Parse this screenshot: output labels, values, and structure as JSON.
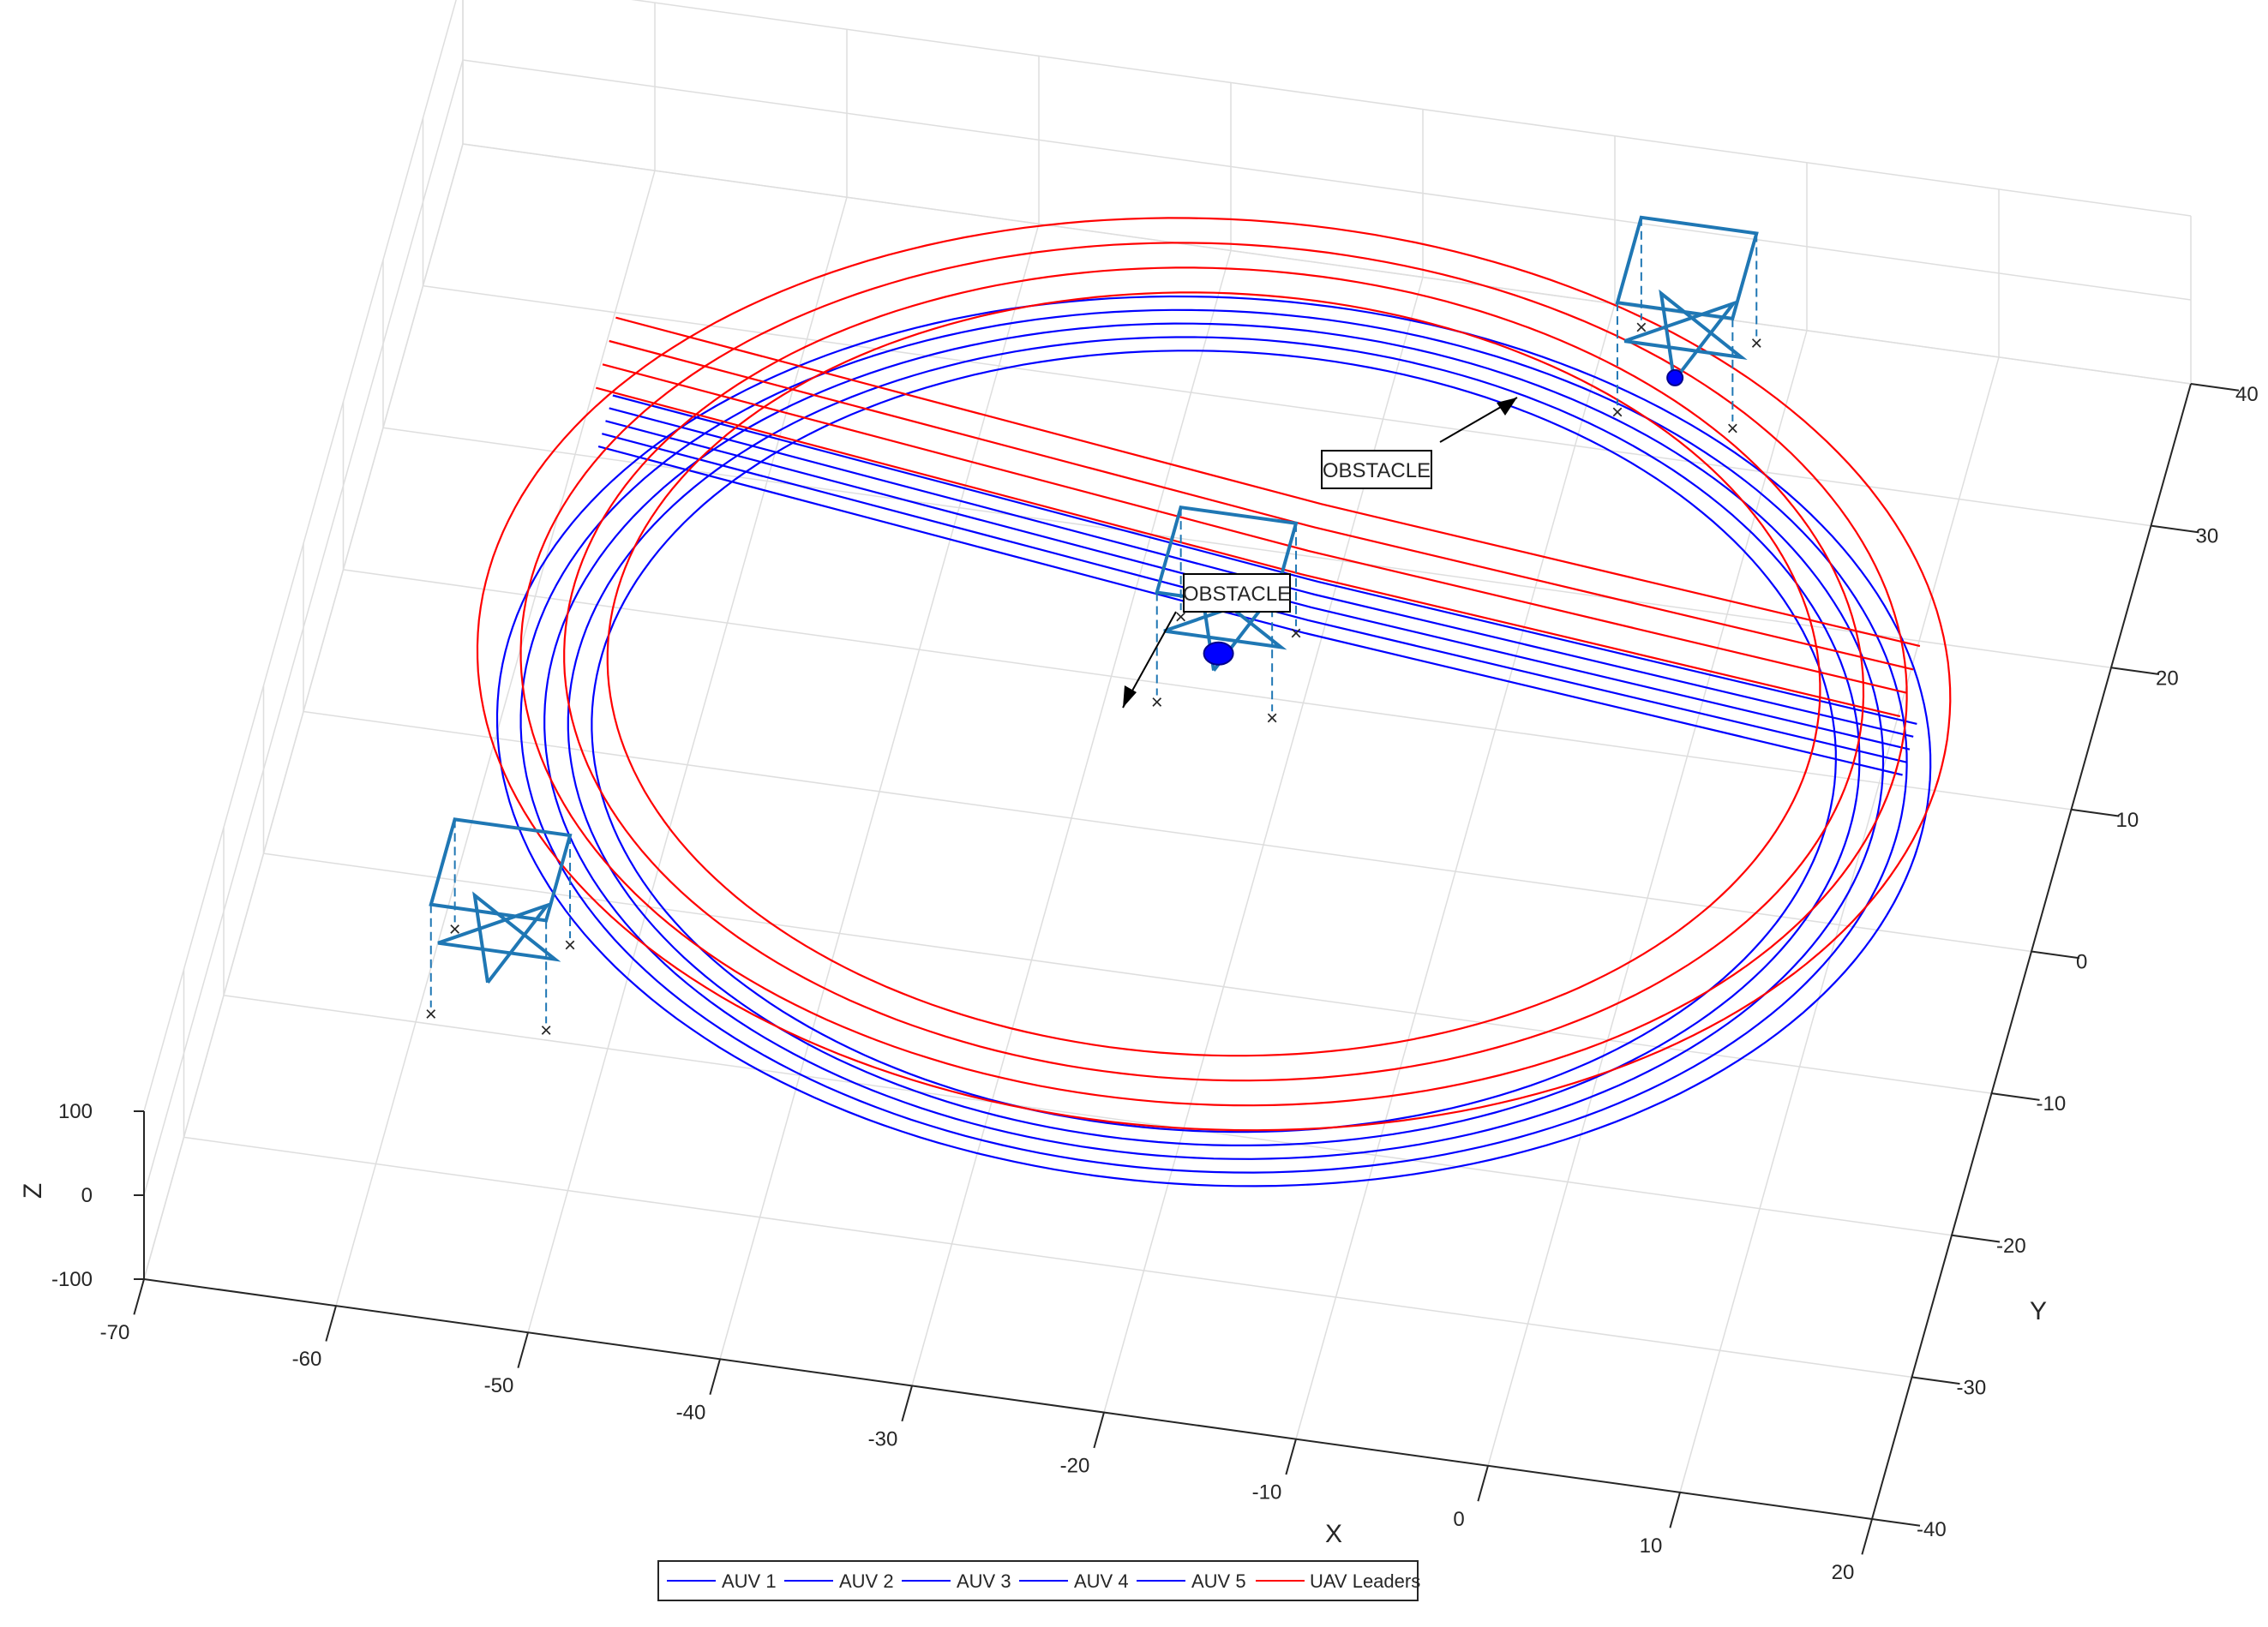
{
  "chart_data": {
    "type": "line",
    "view": "3d",
    "xlabel": "X",
    "ylabel": "Y",
    "zlabel": "Z",
    "xlim": [
      -70,
      20
    ],
    "ylim": [
      -40,
      40
    ],
    "zlim": [
      -100,
      100
    ],
    "x_ticks": [
      "-70",
      "-60",
      "-50",
      "-40",
      "-30",
      "-20",
      "-10",
      "0",
      "10",
      "20"
    ],
    "y_ticks": [
      "-40",
      "-30",
      "-20",
      "-10",
      "0",
      "10",
      "20",
      "30",
      "40"
    ],
    "z_ticks": [
      "-100",
      "0",
      "100"
    ],
    "grid": true,
    "legend_position": "bottom",
    "series": [
      {
        "name": "AUV 1",
        "color": "#0000ff",
        "z": -20,
        "cx": -23,
        "cy": 2,
        "rx": 37,
        "ry": 30,
        "offset": -1.2
      },
      {
        "name": "AUV 2",
        "color": "#0000ff",
        "z": -20,
        "cx": -23,
        "cy": 2,
        "rx": 37,
        "ry": 30,
        "offset": -0.6
      },
      {
        "name": "AUV 3",
        "color": "#0000ff",
        "z": -20,
        "cx": -23,
        "cy": 2,
        "rx": 37,
        "ry": 30,
        "offset": 0.0
      },
      {
        "name": "AUV 4",
        "color": "#0000ff",
        "z": -20,
        "cx": -23,
        "cy": 2,
        "rx": 37,
        "ry": 30,
        "offset": 0.6
      },
      {
        "name": "AUV 5",
        "color": "#0000ff",
        "z": -20,
        "cx": -23,
        "cy": 2,
        "rx": 37,
        "ry": 30,
        "offset": 1.2
      },
      {
        "name": "UAV Leaders",
        "color": "#ff0000",
        "z": 60,
        "cx": -23,
        "cy": 2,
        "rx": 37,
        "ry": 30,
        "offset": 0.0
      }
    ],
    "annotations": [
      {
        "text": "OBSTACLE"
      },
      {
        "text": "OBSTACLE"
      }
    ]
  },
  "colors": {
    "auv": "#0000ff",
    "uav": "#ff0000",
    "formation": "#1f77b4",
    "grid": "#dedede",
    "axis": "#262626"
  }
}
